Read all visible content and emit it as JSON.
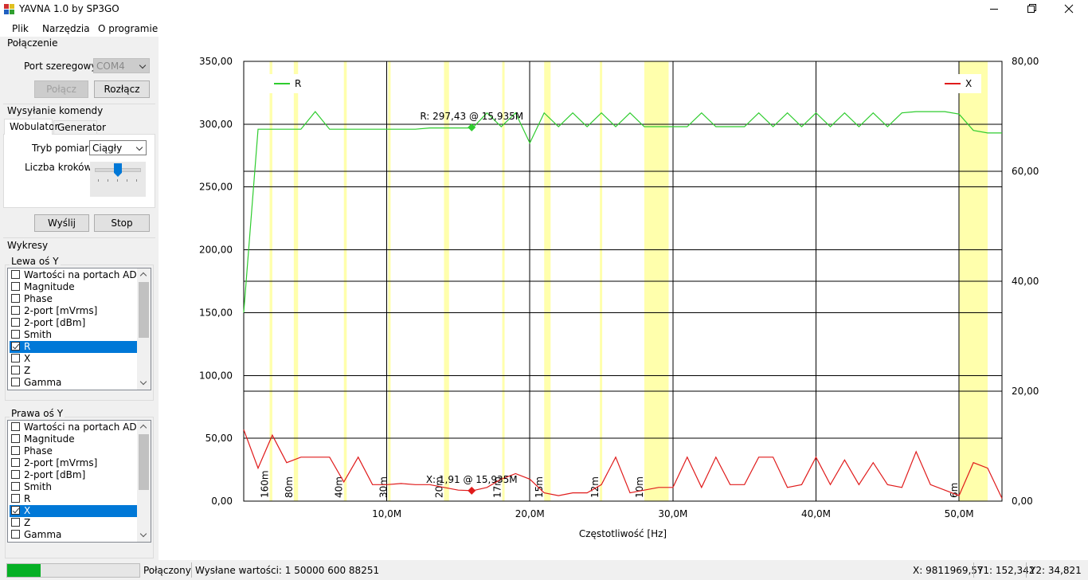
{
  "window": {
    "title": "YAVNA 1.0 by SP3GO"
  },
  "menu": [
    "Plik",
    "Narzędzia",
    "O programie"
  ],
  "connection": {
    "group": "Połączenie",
    "port_label": "Port szeregowy:",
    "port_value": "COM4",
    "connect": "Połącz",
    "disconnect": "Rozłącz"
  },
  "command": {
    "group": "Wysyłanie komendy",
    "tabs": [
      "Wobulator",
      "Generator"
    ],
    "mode_label": "Tryb pomiaru:",
    "mode_value": "Ciągły",
    "steps_label": "Liczba kroków:",
    "send": "Wyślij",
    "stop": "Stop"
  },
  "plots": {
    "group": "Wykresy",
    "lists": [
      {
        "title": "Lewa oś Y",
        "items": [
          "Wartości na portach ADC",
          "Magnitude",
          "Phase",
          "2-port [mVrms]",
          "2-port [dBm]",
          "Smith",
          "R",
          "X",
          "Z",
          "Gamma"
        ],
        "checked": [
          6
        ]
      },
      {
        "title": "Prawa oś Y",
        "items": [
          "Wartości na portach ADC",
          "Magnitude",
          "Phase",
          "2-port [mVrms]",
          "2-port [dBm]",
          "Smith",
          "R",
          "X",
          "Z",
          "Gamma"
        ],
        "checked": [
          7
        ]
      }
    ]
  },
  "status": {
    "state": "Połączony",
    "sent": "Wysłane wartości: 1 50000 600 88251",
    "x": "X: 9811969,57",
    "y1": "Y1: 152,342",
    "y2": "Y2: 34,821"
  },
  "chart_data": {
    "type": "line",
    "x_label": "Częstotliwość [Hz]",
    "xlim": [
      0,
      53000000
    ],
    "ylim": [
      0,
      350
    ],
    "y2lim": [
      0,
      80
    ],
    "grid": true,
    "xticks": [
      {
        "value": 10000000,
        "label": "10,0M"
      },
      {
        "value": 20000000,
        "label": "20,0M"
      },
      {
        "value": 30000000,
        "label": "30,0M"
      },
      {
        "value": 40000000,
        "label": "40,0M"
      },
      {
        "value": 50000000,
        "label": "50,0M"
      }
    ],
    "yticks": [
      {
        "value": 0,
        "label": "0,00"
      },
      {
        "value": 50,
        "label": "50,00"
      },
      {
        "value": 100,
        "label": "100,00"
      },
      {
        "value": 150,
        "label": "150,00"
      },
      {
        "value": 200,
        "label": "200,00"
      },
      {
        "value": 250,
        "label": "250,00"
      },
      {
        "value": 300,
        "label": "300,00"
      },
      {
        "value": 350,
        "label": "350,00"
      }
    ],
    "y2ticks": [
      {
        "value": 0,
        "label": "0,00"
      },
      {
        "value": 20,
        "label": "20,00"
      },
      {
        "value": 40,
        "label": "40,00"
      },
      {
        "value": 60,
        "label": "60,00"
      },
      {
        "value": 80,
        "label": "80,00"
      }
    ],
    "bands": [
      {
        "label": "160m",
        "range": [
          1810000,
          2000000
        ]
      },
      {
        "label": "80m",
        "range": [
          3500000,
          3800000
        ]
      },
      {
        "label": "40m",
        "range": [
          7000000,
          7200000
        ]
      },
      {
        "label": "30m",
        "range": [
          10100000,
          10150000
        ]
      },
      {
        "label": "20m",
        "range": [
          14000000,
          14350000
        ]
      },
      {
        "label": "17m",
        "range": [
          18068000,
          18168000
        ]
      },
      {
        "label": "15m",
        "range": [
          21000000,
          21450000
        ]
      },
      {
        "label": "12m",
        "range": [
          24890000,
          24990000
        ]
      },
      {
        "label": "10m",
        "range": [
          28000000,
          29700000
        ]
      },
      {
        "label": "6m",
        "range": [
          50000000,
          52000000
        ]
      }
    ],
    "x": [
      0,
      1000000,
      2000000,
      3000000,
      4000000,
      5000000,
      6000000,
      7000000,
      8000000,
      9000000,
      10000000,
      11000000,
      12000000,
      13000000,
      14000000,
      15000000,
      16000000,
      17000000,
      18000000,
      19000000,
      20000000,
      21000000,
      22000000,
      23000000,
      24000000,
      25000000,
      26000000,
      27000000,
      28000000,
      29000000,
      30000000,
      31000000,
      32000000,
      33000000,
      34000000,
      35000000,
      36000000,
      37000000,
      38000000,
      39000000,
      40000000,
      41000000,
      42000000,
      43000000,
      44000000,
      45000000,
      46000000,
      47000000,
      48000000,
      49000000,
      50000000,
      51000000,
      52000000,
      53000000
    ],
    "series": [
      {
        "name": "R",
        "color": "#2ecc2e",
        "axis": "y",
        "values": [
          150,
          296,
          296,
          296,
          296,
          310,
          296,
          296,
          296,
          296,
          296,
          296,
          296,
          297,
          297,
          297,
          297,
          309,
          298,
          309,
          285,
          309,
          298,
          309,
          298,
          309,
          298,
          309,
          298,
          298,
          298,
          298,
          309,
          298,
          298,
          298,
          309,
          298,
          309,
          298,
          309,
          298,
          309,
          298,
          309,
          298,
          309,
          310,
          310,
          310,
          308,
          295,
          293,
          293
        ]
      },
      {
        "name": "X",
        "color": "#e01b1b",
        "axis": "y2",
        "values": [
          13,
          6,
          12,
          7,
          8,
          8,
          8,
          3.5,
          8,
          3,
          3,
          3.2,
          3,
          3,
          2.5,
          2,
          1.9,
          2.5,
          4,
          5,
          4,
          1.5,
          1,
          1.5,
          1.5,
          3,
          8,
          1.5,
          2,
          2.5,
          2.5,
          8,
          2.5,
          8,
          3,
          3,
          8,
          8,
          2.5,
          3,
          8,
          3,
          7.5,
          3,
          7,
          3,
          2.5,
          9,
          3,
          2,
          1,
          7,
          6,
          0.5
        ]
      }
    ],
    "markers": [
      {
        "label": "R: 297,43 @ 15,935M",
        "x": 15935000,
        "y": 297.43,
        "series": 0
      },
      {
        "label": "X: 1,91 @ 15,935M",
        "x": 15935000,
        "y": 1.91,
        "series": 1
      }
    ]
  }
}
